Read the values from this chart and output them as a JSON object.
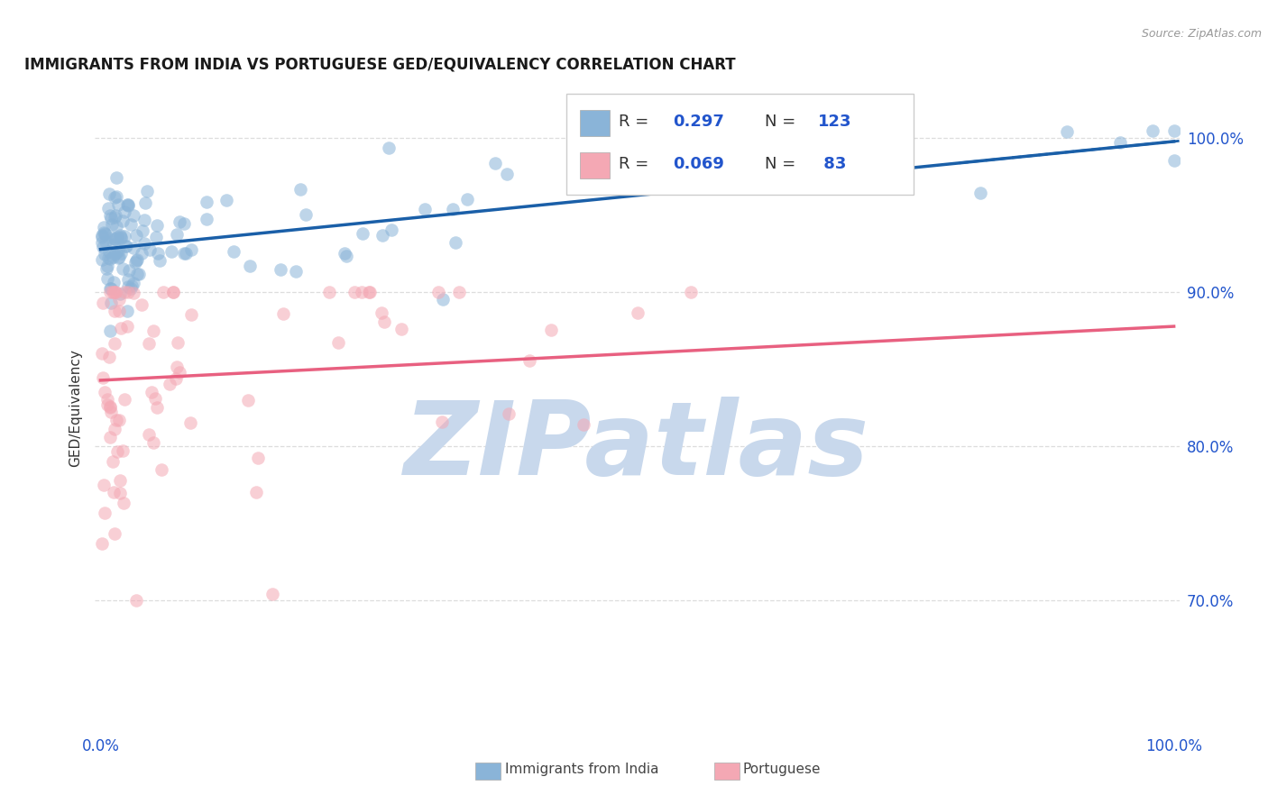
{
  "title": "IMMIGRANTS FROM INDIA VS PORTUGUESE GED/EQUIVALENCY CORRELATION CHART",
  "source": "Source: ZipAtlas.com",
  "ylabel": "GED/Equivalency",
  "ytick_labels": [
    "70.0%",
    "80.0%",
    "90.0%",
    "100.0%"
  ],
  "ytick_values": [
    0.7,
    0.8,
    0.9,
    1.0
  ],
  "xmin": -0.005,
  "xmax": 1.005,
  "ymin": 0.615,
  "ymax": 1.035,
  "legend_r1": "0.297",
  "legend_n1": "123",
  "legend_r2": "0.069",
  "legend_n2": " 83",
  "blue_color": "#8AB4D8",
  "pink_color": "#F4A8B4",
  "trend_blue": "#1A5FA8",
  "trend_pink": "#E86080",
  "india_trend_y_start": 0.928,
  "india_trend_y_end": 0.998,
  "portuguese_trend_y_start": 0.843,
  "portuguese_trend_y_end": 0.878,
  "watermark_text": "ZIPatlas",
  "watermark_color": "#C8D8EC",
  "background_color": "#FFFFFF",
  "grid_color": "#DDDDDD",
  "title_color": "#1A1A1A",
  "label_color": "#2255CC",
  "text_color": "#333333",
  "source_color": "#999999",
  "bottom_text_color": "#444444"
}
